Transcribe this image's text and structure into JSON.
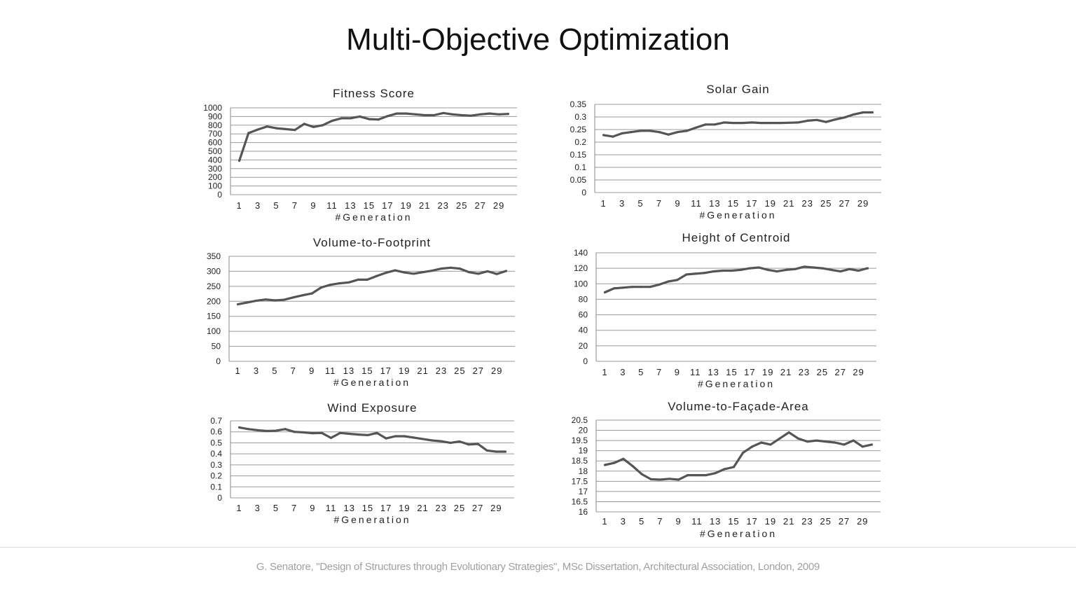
{
  "page": {
    "title": "Multi-Objective Optimization",
    "citation": "G. Senatore, \"Design of Structures through Evolutionary Strategies\", MSc Dissertation, Architectural Association, London, 2009"
  },
  "colors": {
    "line": "#555555",
    "grid": "#9a9a9a",
    "axis": "#888888"
  },
  "chart_data": [
    {
      "type": "line",
      "title": "Fitness Score",
      "xlabel": "#Generation",
      "ylabel": "",
      "grid": true,
      "x": [
        1,
        2,
        3,
        4,
        5,
        6,
        7,
        8,
        9,
        10,
        11,
        12,
        13,
        14,
        15,
        16,
        17,
        18,
        19,
        20,
        21,
        22,
        23,
        24,
        25,
        26,
        27,
        28,
        29,
        30
      ],
      "x_tick_labels": [
        "1",
        "3",
        "5",
        "7",
        "9",
        "11",
        "13",
        "15",
        "17",
        "19",
        "21",
        "23",
        "25",
        "27",
        "29"
      ],
      "y_tick_labels": [
        "0",
        "100",
        "200",
        "300",
        "400",
        "500",
        "600",
        "700",
        "800",
        "900",
        "1000"
      ],
      "ylim": [
        0,
        1000
      ],
      "values": [
        390,
        710,
        750,
        785,
        765,
        755,
        745,
        815,
        780,
        800,
        850,
        880,
        880,
        900,
        870,
        865,
        905,
        935,
        935,
        925,
        915,
        915,
        940,
        925,
        915,
        910,
        925,
        935,
        925,
        930
      ]
    },
    {
      "type": "line",
      "title": "Solar Gain",
      "xlabel": "#Generation",
      "ylabel": "",
      "grid": true,
      "x": [
        1,
        2,
        3,
        4,
        5,
        6,
        7,
        8,
        9,
        10,
        11,
        12,
        13,
        14,
        15,
        16,
        17,
        18,
        19,
        20,
        21,
        22,
        23,
        24,
        25,
        26,
        27,
        28,
        29,
        30
      ],
      "x_tick_labels": [
        "1",
        "3",
        "5",
        "7",
        "9",
        "11",
        "13",
        "15",
        "17",
        "19",
        "21",
        "23",
        "25",
        "27",
        "29"
      ],
      "y_tick_labels": [
        "0",
        "0.05",
        "0.1",
        "0.15",
        "0.2",
        "0.25",
        "0.3",
        "0.35"
      ],
      "ylim": [
        0,
        0.35
      ],
      "values": [
        0.228,
        0.222,
        0.235,
        0.24,
        0.245,
        0.245,
        0.24,
        0.23,
        0.24,
        0.245,
        0.258,
        0.27,
        0.27,
        0.278,
        0.276,
        0.276,
        0.278,
        0.276,
        0.276,
        0.276,
        0.277,
        0.278,
        0.285,
        0.288,
        0.28,
        0.29,
        0.298,
        0.31,
        0.318,
        0.318
      ]
    },
    {
      "type": "line",
      "title": "Volume-to-Footprint",
      "xlabel": "#Generation",
      "ylabel": "",
      "grid": true,
      "x": [
        1,
        2,
        3,
        4,
        5,
        6,
        7,
        8,
        9,
        10,
        11,
        12,
        13,
        14,
        15,
        16,
        17,
        18,
        19,
        20,
        21,
        22,
        23,
        24,
        25,
        26,
        27,
        28,
        29,
        30
      ],
      "x_tick_labels": [
        "1",
        "3",
        "5",
        "7",
        "9",
        "11",
        "13",
        "15",
        "17",
        "19",
        "21",
        "23",
        "25",
        "27",
        "29"
      ],
      "y_tick_labels": [
        "0",
        "50",
        "100",
        "150",
        "200",
        "250",
        "300",
        "350"
      ],
      "ylim": [
        0,
        350
      ],
      "values": [
        190,
        196,
        202,
        206,
        203,
        205,
        213,
        220,
        226,
        246,
        255,
        260,
        263,
        272,
        272,
        284,
        295,
        303,
        296,
        292,
        297,
        302,
        309,
        312,
        309,
        297,
        292,
        300,
        291,
        301
      ]
    },
    {
      "type": "line",
      "title": "Height of Centroid",
      "xlabel": "#Generation",
      "ylabel": "",
      "grid": true,
      "x": [
        1,
        2,
        3,
        4,
        5,
        6,
        7,
        8,
        9,
        10,
        11,
        12,
        13,
        14,
        15,
        16,
        17,
        18,
        19,
        20,
        21,
        22,
        23,
        24,
        25,
        26,
        27,
        28,
        29,
        30
      ],
      "x_tick_labels": [
        "1",
        "3",
        "5",
        "7",
        "9",
        "11",
        "13",
        "15",
        "17",
        "19",
        "21",
        "23",
        "25",
        "27",
        "29"
      ],
      "y_tick_labels": [
        "0",
        "20",
        "40",
        "60",
        "80",
        "100",
        "120",
        "140"
      ],
      "ylim": [
        0,
        140
      ],
      "values": [
        89,
        94,
        95,
        96,
        96,
        96,
        99,
        103,
        105,
        112,
        113,
        114,
        116,
        117,
        117,
        118,
        120,
        121,
        118,
        116,
        118,
        119,
        122,
        121,
        120,
        118,
        116,
        119,
        117,
        120
      ]
    },
    {
      "type": "line",
      "title": "Wind Exposure",
      "xlabel": "#Generation",
      "ylabel": "",
      "grid": true,
      "x": [
        1,
        2,
        3,
        4,
        5,
        6,
        7,
        8,
        9,
        10,
        11,
        12,
        13,
        14,
        15,
        16,
        17,
        18,
        19,
        20,
        21,
        22,
        23,
        24,
        25,
        26,
        27,
        28,
        29,
        30
      ],
      "x_tick_labels": [
        "1",
        "3",
        "5",
        "7",
        "9",
        "11",
        "13",
        "15",
        "17",
        "19",
        "21",
        "23",
        "25",
        "27",
        "29"
      ],
      "y_tick_labels": [
        "0",
        "0.1",
        "0.2",
        "0.3",
        "0.4",
        "0.5",
        "0.6",
        "0.7"
      ],
      "ylim": [
        0,
        0.7
      ],
      "values": [
        0.64,
        0.625,
        0.615,
        0.608,
        0.61,
        0.625,
        0.6,
        0.595,
        0.588,
        0.59,
        0.545,
        0.59,
        0.582,
        0.575,
        0.57,
        0.59,
        0.54,
        0.56,
        0.56,
        0.548,
        0.535,
        0.522,
        0.515,
        0.5,
        0.512,
        0.485,
        0.49,
        0.43,
        0.42,
        0.42
      ]
    },
    {
      "type": "line",
      "title": "Volume-to-Façade-Area",
      "xlabel": "#Generation",
      "ylabel": "",
      "grid": true,
      "x": [
        1,
        2,
        3,
        4,
        5,
        6,
        7,
        8,
        9,
        10,
        11,
        12,
        13,
        14,
        15,
        16,
        17,
        18,
        19,
        20,
        21,
        22,
        23,
        24,
        25,
        26,
        27,
        28,
        29,
        30
      ],
      "x_tick_labels": [
        "1",
        "3",
        "5",
        "7",
        "9",
        "11",
        "13",
        "15",
        "17",
        "19",
        "21",
        "23",
        "25",
        "27",
        "29"
      ],
      "y_tick_labels": [
        "16",
        "16.5",
        "17",
        "17.5",
        "18",
        "18.5",
        "19",
        "19.5",
        "20",
        "20.5"
      ],
      "ylim": [
        16,
        20.5
      ],
      "values": [
        18.3,
        18.4,
        18.6,
        18.25,
        17.85,
        17.6,
        17.58,
        17.62,
        17.58,
        17.8,
        17.8,
        17.8,
        17.9,
        18.1,
        18.2,
        18.9,
        19.2,
        19.4,
        19.3,
        19.6,
        19.9,
        19.6,
        19.45,
        19.5,
        19.45,
        19.4,
        19.3,
        19.5,
        19.2,
        19.3
      ]
    }
  ]
}
